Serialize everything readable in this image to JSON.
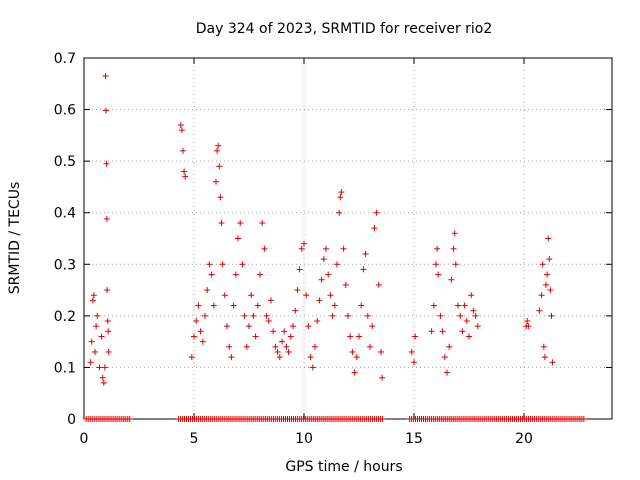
{
  "chart_data": {
    "type": "scatter",
    "title": "Day 324 of 2023, SRMTID for receiver rio2",
    "xlabel": "GPS time / hours",
    "ylabel": "SRMTID / TECUs",
    "xlim": [
      0,
      24
    ],
    "ylim": [
      0,
      0.7
    ],
    "x_ticks": [
      {
        "value": 0,
        "label": "0"
      },
      {
        "value": 5,
        "label": "5"
      },
      {
        "value": 10,
        "label": "10"
      },
      {
        "value": 15,
        "label": "15"
      },
      {
        "value": 20,
        "label": "20"
      }
    ],
    "y_ticks": [
      {
        "value": 0,
        "label": "0"
      },
      {
        "value": 0.1,
        "label": "0.1"
      },
      {
        "value": 0.2,
        "label": "0.2"
      },
      {
        "value": 0.3,
        "label": "0.3"
      },
      {
        "value": 0.4,
        "label": "0.4"
      },
      {
        "value": 0.5,
        "label": "0.5"
      },
      {
        "value": 0.6,
        "label": "0.6"
      },
      {
        "value": 0.7,
        "label": "0.7"
      }
    ],
    "grid": true,
    "marker": "+",
    "marker_color": "#e00000",
    "series": [
      {
        "name": "SRMTID",
        "points": [
          [
            0.3,
            0.11
          ],
          [
            0.35,
            0.15
          ],
          [
            0.4,
            0.23
          ],
          [
            0.45,
            0.24
          ],
          [
            0.5,
            0.13
          ],
          [
            0.55,
            0.18
          ],
          [
            0.6,
            0.2
          ],
          [
            0.7,
            0.1
          ],
          [
            0.8,
            0.16
          ],
          [
            0.85,
            0.08
          ],
          [
            0.9,
            0.07
          ],
          [
            0.95,
            0.1
          ],
          [
            0.98,
            0.665
          ],
          [
            1.0,
            0.598
          ],
          [
            1.02,
            0.495
          ],
          [
            1.04,
            0.388
          ],
          [
            1.05,
            0.25
          ],
          [
            1.08,
            0.19
          ],
          [
            1.1,
            0.17
          ],
          [
            1.12,
            0.13
          ],
          [
            4.4,
            0.57
          ],
          [
            4.45,
            0.56
          ],
          [
            4.5,
            0.52
          ],
          [
            4.55,
            0.48
          ],
          [
            4.6,
            0.47
          ],
          [
            4.9,
            0.12
          ],
          [
            5.0,
            0.16
          ],
          [
            5.1,
            0.19
          ],
          [
            5.2,
            0.22
          ],
          [
            5.3,
            0.17
          ],
          [
            5.4,
            0.15
          ],
          [
            5.5,
            0.2
          ],
          [
            5.6,
            0.25
          ],
          [
            5.7,
            0.3
          ],
          [
            5.8,
            0.28
          ],
          [
            5.9,
            0.22
          ],
          [
            6.0,
            0.46
          ],
          [
            6.05,
            0.52
          ],
          [
            6.1,
            0.53
          ],
          [
            6.15,
            0.49
          ],
          [
            6.2,
            0.43
          ],
          [
            6.25,
            0.38
          ],
          [
            6.3,
            0.3
          ],
          [
            6.4,
            0.24
          ],
          [
            6.5,
            0.18
          ],
          [
            6.6,
            0.14
          ],
          [
            6.7,
            0.12
          ],
          [
            6.8,
            0.22
          ],
          [
            6.9,
            0.28
          ],
          [
            7.0,
            0.35
          ],
          [
            7.1,
            0.38
          ],
          [
            7.2,
            0.3
          ],
          [
            7.3,
            0.2
          ],
          [
            7.4,
            0.14
          ],
          [
            7.5,
            0.18
          ],
          [
            7.6,
            0.24
          ],
          [
            7.7,
            0.2
          ],
          [
            7.8,
            0.16
          ],
          [
            7.9,
            0.22
          ],
          [
            8.0,
            0.28
          ],
          [
            8.1,
            0.38
          ],
          [
            8.2,
            0.33
          ],
          [
            8.3,
            0.2
          ],
          [
            8.4,
            0.19
          ],
          [
            8.5,
            0.23
          ],
          [
            8.6,
            0.17
          ],
          [
            8.7,
            0.14
          ],
          [
            8.8,
            0.13
          ],
          [
            8.9,
            0.12
          ],
          [
            9.0,
            0.15
          ],
          [
            9.1,
            0.17
          ],
          [
            9.2,
            0.14
          ],
          [
            9.3,
            0.13
          ],
          [
            9.4,
            0.16
          ],
          [
            9.5,
            0.18
          ],
          [
            9.6,
            0.21
          ],
          [
            9.7,
            0.25
          ],
          [
            9.8,
            0.29
          ],
          [
            9.9,
            0.33
          ],
          [
            10.0,
            0.34
          ],
          [
            10.1,
            0.24
          ],
          [
            10.2,
            0.18
          ],
          [
            10.3,
            0.12
          ],
          [
            10.4,
            0.1
          ],
          [
            10.5,
            0.14
          ],
          [
            10.6,
            0.19
          ],
          [
            10.7,
            0.23
          ],
          [
            10.8,
            0.27
          ],
          [
            10.9,
            0.31
          ],
          [
            11.0,
            0.33
          ],
          [
            11.1,
            0.28
          ],
          [
            11.2,
            0.24
          ],
          [
            11.3,
            0.2
          ],
          [
            11.4,
            0.22
          ],
          [
            11.5,
            0.3
          ],
          [
            11.6,
            0.4
          ],
          [
            11.65,
            0.43
          ],
          [
            11.7,
            0.44
          ],
          [
            11.8,
            0.33
          ],
          [
            11.9,
            0.26
          ],
          [
            12.0,
            0.2
          ],
          [
            12.1,
            0.16
          ],
          [
            12.2,
            0.13
          ],
          [
            12.3,
            0.09
          ],
          [
            12.4,
            0.12
          ],
          [
            12.5,
            0.16
          ],
          [
            12.6,
            0.22
          ],
          [
            12.7,
            0.29
          ],
          [
            12.8,
            0.32
          ],
          [
            12.9,
            0.2
          ],
          [
            13.0,
            0.14
          ],
          [
            13.1,
            0.18
          ],
          [
            13.2,
            0.37
          ],
          [
            13.3,
            0.4
          ],
          [
            13.4,
            0.26
          ],
          [
            13.5,
            0.13
          ],
          [
            13.55,
            0.08
          ],
          [
            14.9,
            0.13
          ],
          [
            15.0,
            0.11
          ],
          [
            15.05,
            0.16
          ],
          [
            15.8,
            0.17
          ],
          [
            15.9,
            0.22
          ],
          [
            16.0,
            0.3
          ],
          [
            16.05,
            0.33
          ],
          [
            16.1,
            0.28
          ],
          [
            16.2,
            0.2
          ],
          [
            16.3,
            0.17
          ],
          [
            16.4,
            0.12
          ],
          [
            16.5,
            0.09
          ],
          [
            16.6,
            0.14
          ],
          [
            16.7,
            0.27
          ],
          [
            16.8,
            0.33
          ],
          [
            16.85,
            0.36
          ],
          [
            16.9,
            0.3
          ],
          [
            17.0,
            0.22
          ],
          [
            17.1,
            0.2
          ],
          [
            17.2,
            0.17
          ],
          [
            17.3,
            0.22
          ],
          [
            17.4,
            0.19
          ],
          [
            17.5,
            0.16
          ],
          [
            17.6,
            0.24
          ],
          [
            17.7,
            0.21
          ],
          [
            17.8,
            0.2
          ],
          [
            17.9,
            0.18
          ],
          [
            20.1,
            0.18
          ],
          [
            20.15,
            0.19
          ],
          [
            20.2,
            0.18
          ],
          [
            20.7,
            0.21
          ],
          [
            20.8,
            0.24
          ],
          [
            20.85,
            0.3
          ],
          [
            20.9,
            0.14
          ],
          [
            20.95,
            0.12
          ],
          [
            21.0,
            0.26
          ],
          [
            21.05,
            0.28
          ],
          [
            21.1,
            0.35
          ],
          [
            21.15,
            0.31
          ],
          [
            21.2,
            0.25
          ],
          [
            21.25,
            0.2
          ],
          [
            21.3,
            0.11
          ]
        ]
      }
    ],
    "zero_segments": [
      [
        0.1,
        2.15
      ],
      [
        4.3,
        13.6
      ],
      [
        14.8,
        22.8
      ]
    ]
  }
}
